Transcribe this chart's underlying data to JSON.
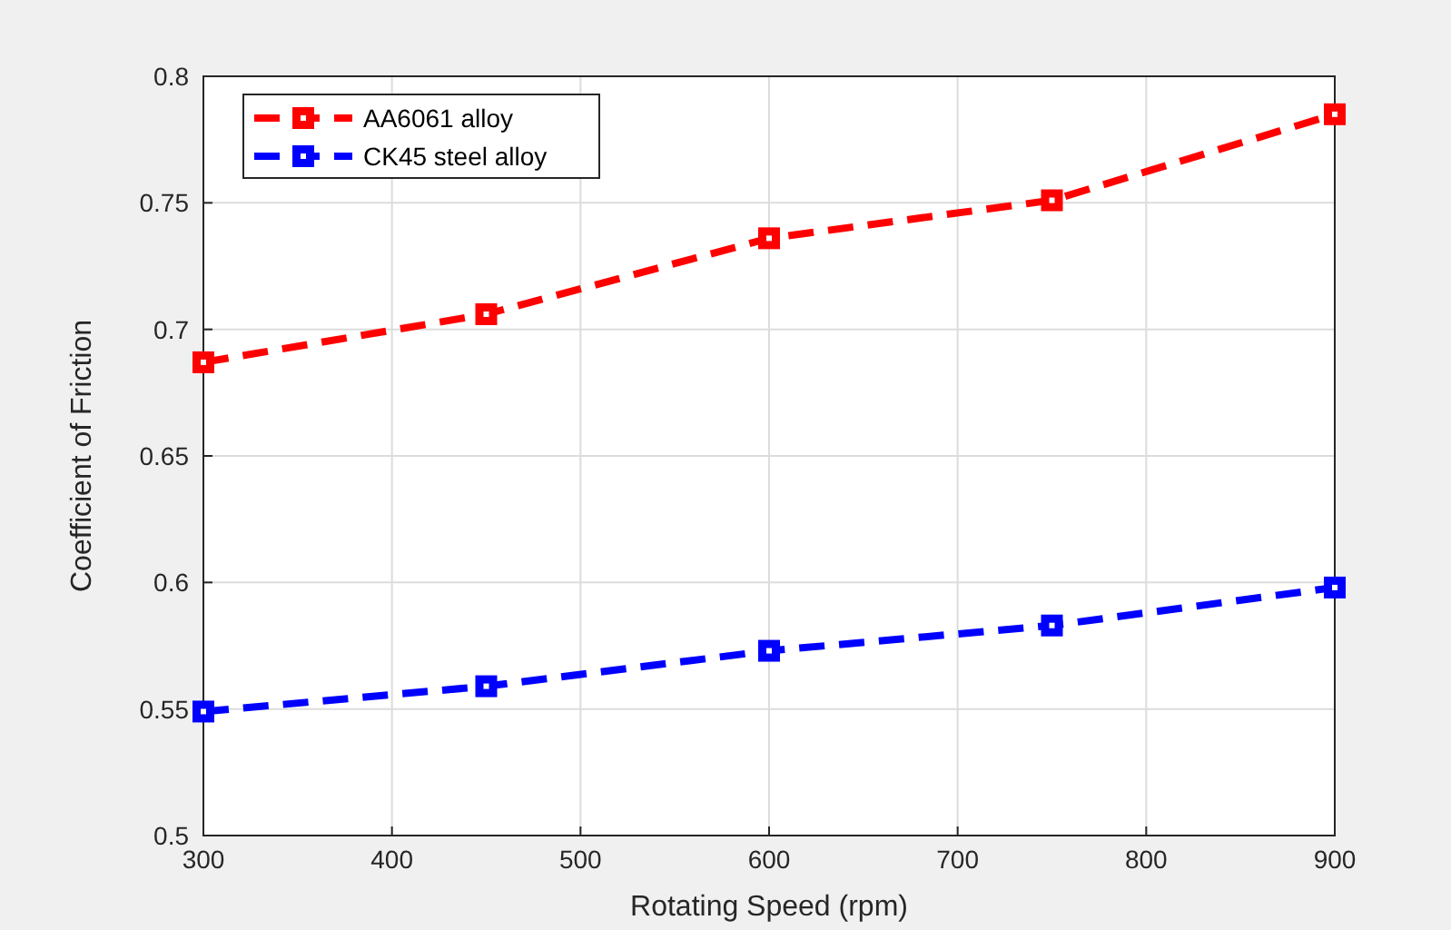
{
  "chart_data": {
    "type": "line",
    "xlabel": "Rotating Speed (rpm)",
    "ylabel": "Coefficient of Friction",
    "x": [
      300,
      450,
      600,
      750,
      900
    ],
    "series": [
      {
        "name": "AA6061 alloy",
        "color": "#ff0000",
        "values": [
          0.687,
          0.706,
          0.736,
          0.751,
          0.785
        ]
      },
      {
        "name": "CK45 steel alloy",
        "color": "#0000ff",
        "values": [
          0.549,
          0.559,
          0.573,
          0.583,
          0.598
        ]
      }
    ],
    "xlim": [
      300,
      900
    ],
    "xticks": [
      300,
      400,
      500,
      600,
      700,
      800,
      900
    ],
    "ylim": [
      0.5,
      0.8
    ],
    "yticks": [
      0.5,
      0.55,
      0.6,
      0.65,
      0.7,
      0.75,
      0.8
    ],
    "grid": true,
    "legend": "top left",
    "marker": "square",
    "line_style": "dashed"
  }
}
